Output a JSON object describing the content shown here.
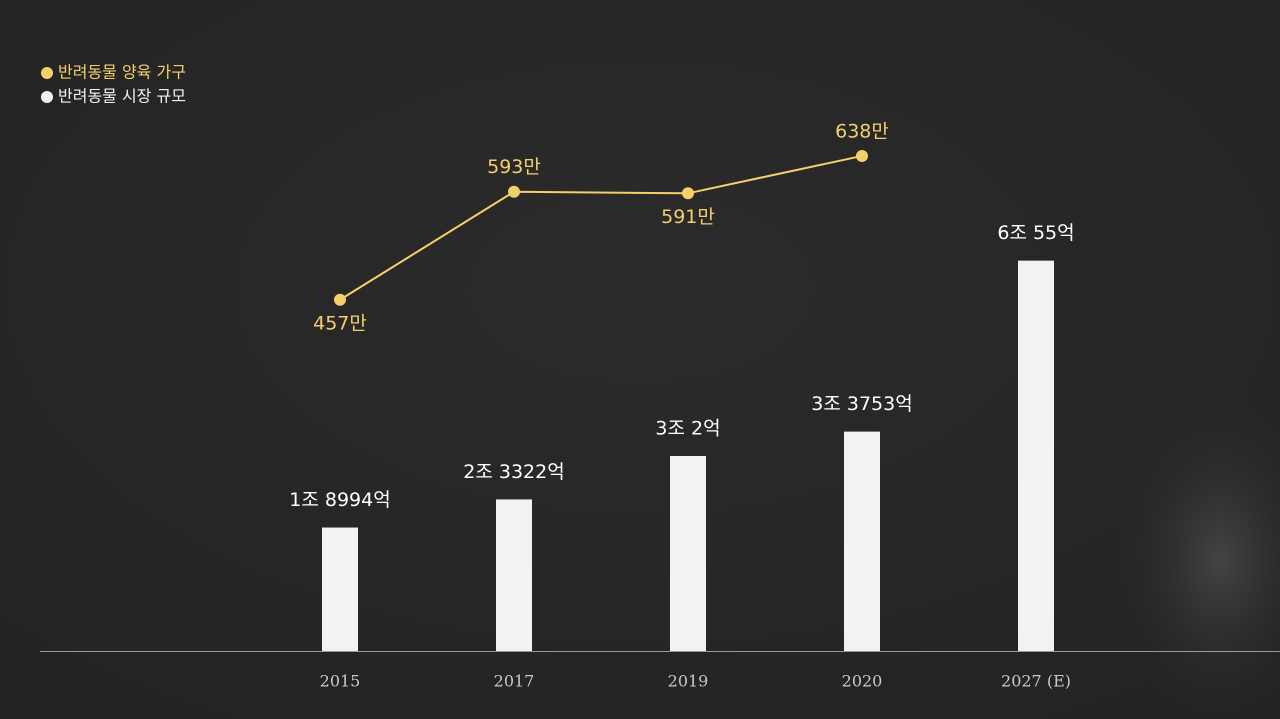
{
  "chart_data": {
    "type": "bar",
    "categories": [
      "2015",
      "2017",
      "2019",
      "2020",
      "2027 (E)"
    ],
    "series": [
      {
        "name": "반려동물 양육 가구",
        "type": "line",
        "axis": "y2",
        "color": "#f5cf6a",
        "values": [
          457,
          593,
          591,
          638,
          null
        ],
        "value_labels": [
          "457만",
          "593만",
          "591만",
          "638만",
          null
        ]
      },
      {
        "name": "반려동물 시장 규모",
        "type": "bar",
        "color": "#f2f2f2",
        "values": [
          18994,
          23322,
          30002,
          33753,
          60055
        ],
        "value_labels": [
          "1조 8994억",
          "2조 3322억",
          "3조 2억",
          "3조 3753억",
          "6조 55억"
        ]
      }
    ],
    "ylim": [
      0,
      100000
    ],
    "y2lim": [
      15,
      833
    ],
    "legend": "top-left"
  }
}
